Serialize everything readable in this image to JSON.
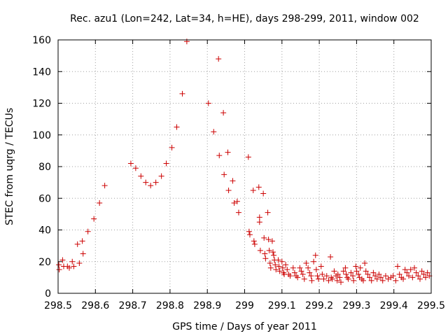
{
  "chart_data": {
    "type": "scatter",
    "title": "Rec. azu1 (Lon=242, Lat=34, h=HE), days 298-299, 2011, window 002",
    "xlabel": "GPS time / Days of year 2011",
    "ylabel": "STEC from uqrg / TECUs",
    "xlim": [
      298.5,
      299.5
    ],
    "ylim": [
      0,
      160
    ],
    "xticks": [
      298.5,
      298.6,
      298.7,
      298.8,
      298.9,
      299,
      299.1,
      299.2,
      299.3,
      299.4,
      299.5
    ],
    "xtick_labels": [
      "298.5",
      "298.6",
      "298.7",
      "298.8",
      "298.9",
      "299",
      "299.1",
      "299.2",
      "299.3",
      "299.4",
      "299.5"
    ],
    "yticks": [
      0,
      20,
      40,
      60,
      80,
      100,
      120,
      140,
      160
    ],
    "ytick_labels": [
      "0",
      "20",
      "40",
      "60",
      "80",
      "100",
      "120",
      "140",
      "160"
    ],
    "grid": true,
    "marker": "+",
    "color": "#cc0000",
    "points": [
      [
        298.502,
        18
      ],
      [
        298.503,
        15
      ],
      [
        298.512,
        21
      ],
      [
        298.515,
        17
      ],
      [
        298.525,
        17
      ],
      [
        298.53,
        16
      ],
      [
        298.538,
        20
      ],
      [
        298.542,
        17
      ],
      [
        298.552,
        31
      ],
      [
        298.557,
        19
      ],
      [
        298.565,
        33
      ],
      [
        298.567,
        25
      ],
      [
        298.58,
        39
      ],
      [
        298.596,
        47
      ],
      [
        298.611,
        57
      ],
      [
        298.625,
        68
      ],
      [
        298.695,
        82
      ],
      [
        298.708,
        79
      ],
      [
        298.722,
        74
      ],
      [
        298.735,
        70
      ],
      [
        298.748,
        68
      ],
      [
        298.762,
        70
      ],
      [
        298.777,
        74
      ],
      [
        298.79,
        82
      ],
      [
        298.805,
        92
      ],
      [
        298.818,
        105
      ],
      [
        298.833,
        126
      ],
      [
        298.845,
        159
      ],
      [
        298.903,
        120
      ],
      [
        298.917,
        102
      ],
      [
        298.93,
        148
      ],
      [
        298.932,
        87
      ],
      [
        298.943,
        114
      ],
      [
        298.945,
        75
      ],
      [
        298.955,
        89
      ],
      [
        298.957,
        65
      ],
      [
        298.968,
        71
      ],
      [
        298.972,
        57
      ],
      [
        298.98,
        58
      ],
      [
        298.984,
        51
      ],
      [
        299.01,
        86
      ],
      [
        299.012,
        39
      ],
      [
        299.014,
        37
      ],
      [
        299.023,
        65
      ],
      [
        299.025,
        33
      ],
      [
        299.027,
        31
      ],
      [
        299.038,
        67
      ],
      [
        299.04,
        48
      ],
      [
        299.04,
        45
      ],
      [
        299.042,
        27
      ],
      [
        299.05,
        63
      ],
      [
        299.052,
        35
      ],
      [
        299.054,
        25
      ],
      [
        299.056,
        22
      ],
      [
        299.062,
        51
      ],
      [
        299.064,
        34
      ],
      [
        299.066,
        27
      ],
      [
        299.068,
        19
      ],
      [
        299.07,
        16
      ],
      [
        299.074,
        33
      ],
      [
        299.076,
        26
      ],
      [
        299.078,
        24
      ],
      [
        299.08,
        21
      ],
      [
        299.082,
        18
      ],
      [
        299.084,
        15
      ],
      [
        299.09,
        21
      ],
      [
        299.092,
        17
      ],
      [
        299.094,
        14
      ],
      [
        299.1,
        20
      ],
      [
        299.102,
        16
      ],
      [
        299.104,
        13
      ],
      [
        299.106,
        12
      ],
      [
        299.11,
        18
      ],
      [
        299.114,
        15
      ],
      [
        299.118,
        12
      ],
      [
        299.122,
        11
      ],
      [
        299.13,
        16
      ],
      [
        299.134,
        13
      ],
      [
        299.138,
        11
      ],
      [
        299.142,
        10
      ],
      [
        299.148,
        16
      ],
      [
        299.152,
        14
      ],
      [
        299.156,
        12
      ],
      [
        299.16,
        9
      ],
      [
        299.165,
        19
      ],
      [
        299.17,
        16
      ],
      [
        299.174,
        13
      ],
      [
        299.178,
        11
      ],
      [
        299.18,
        8
      ],
      [
        299.185,
        20
      ],
      [
        299.19,
        24
      ],
      [
        299.192,
        15
      ],
      [
        299.195,
        11
      ],
      [
        299.198,
        9
      ],
      [
        299.205,
        17
      ],
      [
        299.208,
        12
      ],
      [
        299.212,
        9
      ],
      [
        299.22,
        11
      ],
      [
        299.225,
        8
      ],
      [
        299.23,
        23
      ],
      [
        299.232,
        10
      ],
      [
        299.235,
        9
      ],
      [
        299.24,
        14
      ],
      [
        299.245,
        11
      ],
      [
        299.248,
        8
      ],
      [
        299.25,
        12
      ],
      [
        299.255,
        10
      ],
      [
        299.258,
        7
      ],
      [
        299.265,
        14
      ],
      [
        299.27,
        16
      ],
      [
        299.272,
        12
      ],
      [
        299.275,
        10
      ],
      [
        299.278,
        9
      ],
      [
        299.285,
        13
      ],
      [
        299.29,
        11
      ],
      [
        299.292,
        8
      ],
      [
        299.298,
        17
      ],
      [
        299.3,
        14
      ],
      [
        299.305,
        12
      ],
      [
        299.308,
        10
      ],
      [
        299.31,
        16
      ],
      [
        299.314,
        9
      ],
      [
        299.318,
        8
      ],
      [
        299.322,
        19
      ],
      [
        299.325,
        14
      ],
      [
        299.33,
        12
      ],
      [
        299.335,
        10
      ],
      [
        299.34,
        8
      ],
      [
        299.345,
        13
      ],
      [
        299.35,
        11
      ],
      [
        299.355,
        9
      ],
      [
        299.36,
        12
      ],
      [
        299.365,
        10
      ],
      [
        299.37,
        8
      ],
      [
        299.378,
        11
      ],
      [
        299.385,
        9
      ],
      [
        299.392,
        10
      ],
      [
        299.398,
        11
      ],
      [
        299.405,
        8
      ],
      [
        299.41,
        17
      ],
      [
        299.415,
        12
      ],
      [
        299.42,
        10
      ],
      [
        299.425,
        9
      ],
      [
        299.43,
        15
      ],
      [
        299.435,
        13
      ],
      [
        299.44,
        11
      ],
      [
        299.445,
        15
      ],
      [
        299.45,
        10
      ],
      [
        299.455,
        16
      ],
      [
        299.46,
        13
      ],
      [
        299.465,
        11
      ],
      [
        299.47,
        9
      ],
      [
        299.475,
        14
      ],
      [
        299.48,
        12
      ],
      [
        299.485,
        10
      ],
      [
        299.49,
        13
      ],
      [
        299.495,
        11
      ]
    ]
  }
}
